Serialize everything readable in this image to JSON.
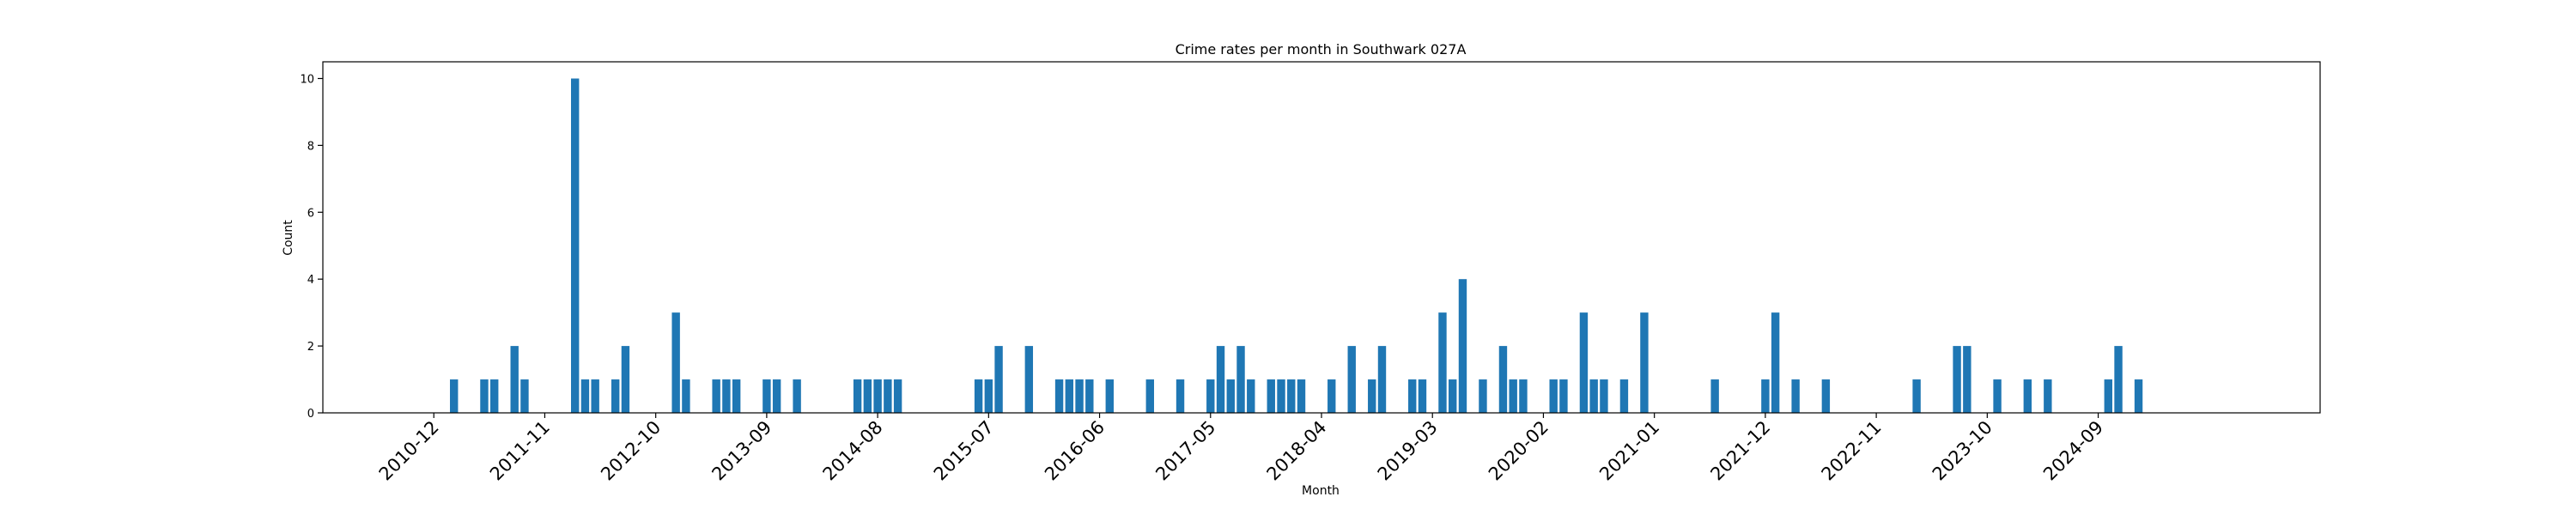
{
  "chart_data": {
    "type": "bar",
    "title": "Crime rates per month in Southwark 027A",
    "xlabel": "Month",
    "ylabel": "Count",
    "ylim": [
      0,
      10.5
    ],
    "yticks": [
      0,
      2,
      4,
      6,
      8,
      10
    ],
    "xlim": [
      "2010-01",
      "2026-07"
    ],
    "xticks": [
      "2010-12",
      "2011-11",
      "2012-10",
      "2013-09",
      "2014-08",
      "2015-07",
      "2016-06",
      "2017-05",
      "2018-04",
      "2019-03",
      "2020-02",
      "2021-01",
      "2021-12",
      "2022-11",
      "2023-10",
      "2024-09"
    ],
    "bar_color": "#1f77b4",
    "grid": false,
    "legend": "none",
    "x": [
      "2011-02",
      "2011-05",
      "2011-06",
      "2011-08",
      "2011-09",
      "2012-02",
      "2012-03",
      "2012-04",
      "2012-06",
      "2012-07",
      "2012-12",
      "2013-01",
      "2013-04",
      "2013-05",
      "2013-06",
      "2013-09",
      "2013-10",
      "2013-12",
      "2014-06",
      "2014-07",
      "2014-08",
      "2014-09",
      "2014-10",
      "2015-06",
      "2015-07",
      "2015-08",
      "2015-11",
      "2016-02",
      "2016-03",
      "2016-04",
      "2016-05",
      "2016-07",
      "2016-11",
      "2017-02",
      "2017-05",
      "2017-06",
      "2017-07",
      "2017-08",
      "2017-09",
      "2017-11",
      "2017-12",
      "2018-01",
      "2018-02",
      "2018-05",
      "2018-07",
      "2018-09",
      "2018-10",
      "2019-01",
      "2019-02",
      "2019-04",
      "2019-05",
      "2019-06",
      "2019-08",
      "2019-10",
      "2019-11",
      "2019-12",
      "2020-03",
      "2020-04",
      "2020-06",
      "2020-07",
      "2020-08",
      "2020-10",
      "2020-12",
      "2021-07",
      "2021-12",
      "2022-01",
      "2022-03",
      "2022-06",
      "2023-03",
      "2023-07",
      "2023-08",
      "2023-11",
      "2024-02",
      "2024-04",
      "2024-10",
      "2024-11",
      "2025-01"
    ],
    "values": [
      1,
      1,
      1,
      2,
      1,
      10,
      1,
      1,
      1,
      2,
      3,
      1,
      1,
      1,
      1,
      1,
      1,
      1,
      1,
      1,
      1,
      1,
      1,
      1,
      1,
      2,
      2,
      1,
      1,
      1,
      1,
      1,
      1,
      1,
      1,
      2,
      1,
      2,
      1,
      1,
      1,
      1,
      1,
      1,
      2,
      1,
      2,
      1,
      1,
      3,
      1,
      4,
      1,
      2,
      1,
      1,
      1,
      1,
      3,
      1,
      1,
      1,
      3,
      1,
      1,
      3,
      1,
      1,
      1,
      2,
      2,
      1,
      1,
      1,
      1,
      2,
      1
    ]
  }
}
